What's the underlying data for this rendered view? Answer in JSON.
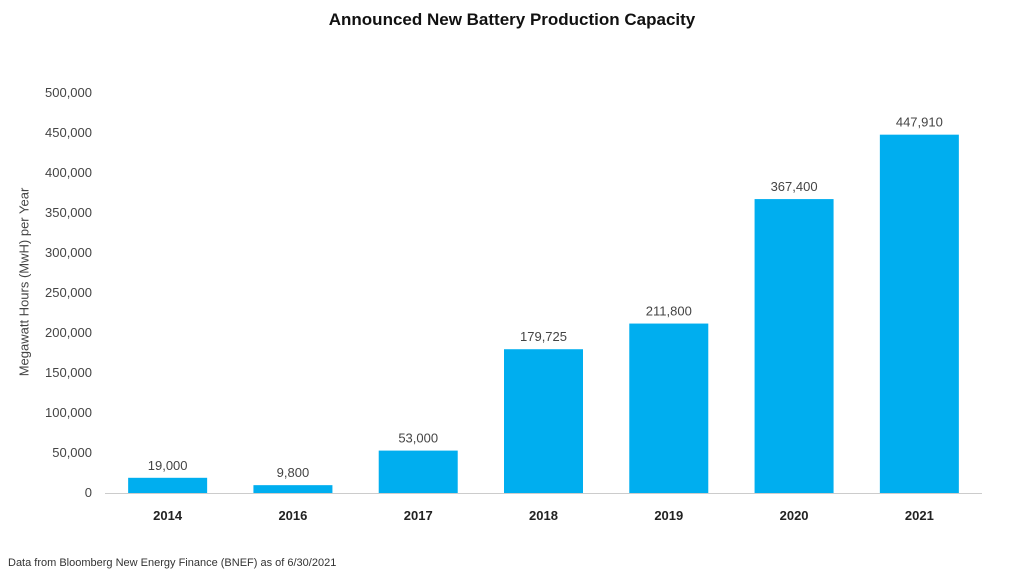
{
  "chart_data": {
    "type": "bar",
    "title": "Announced New Battery Production Capacity",
    "xlabel": "",
    "ylabel": "Megawatt Hours (MwH) per Year",
    "categories": [
      "2014",
      "2016",
      "2017",
      "2018",
      "2019",
      "2020",
      "2021"
    ],
    "values": [
      19000,
      9800,
      53000,
      179725,
      211800,
      367400,
      447910
    ],
    "value_labels": [
      "19,000",
      "9,800",
      "53,000",
      "179,725",
      "211,800",
      "367,400",
      "447,910"
    ],
    "ylim": [
      0,
      500000
    ],
    "yticks": [
      0,
      50000,
      100000,
      150000,
      200000,
      250000,
      300000,
      350000,
      400000,
      450000,
      500000
    ],
    "ytick_labels": [
      "0",
      "50,000",
      "100,000",
      "150,000",
      "200,000",
      "250,000",
      "300,000",
      "350,000",
      "400,000",
      "450,000",
      "500,000"
    ],
    "grid": false,
    "bar_color": "#00AEEF",
    "footnote": "Data from Bloomberg New Energy Finance (BNEF) as of 6/30/2021"
  }
}
